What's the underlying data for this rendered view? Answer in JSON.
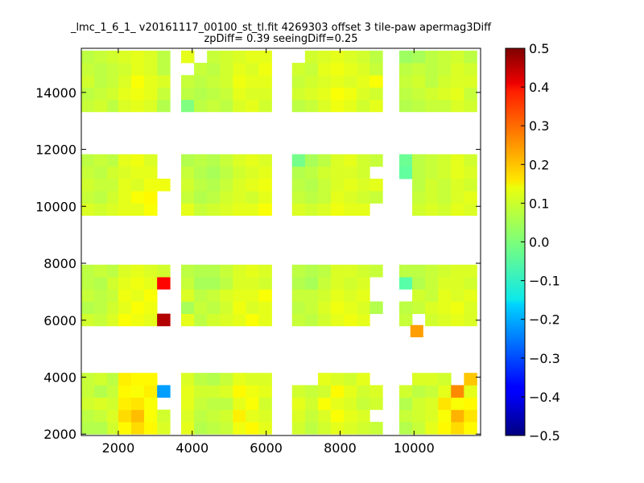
{
  "chart_data": {
    "type": "heatmap",
    "title": "_lmc_1_6_1_ v20161117_00100_st_tl.fit 4269303 offset 3 tile-paw apermag3Diff",
    "subtitle": "zpDiff= 0.39 seeingDiff=0.25",
    "xlim": [
      1000,
      11800
    ],
    "ylim": [
      1950,
      15550
    ],
    "x_ticks": [
      2000,
      4000,
      6000,
      8000,
      10000
    ],
    "y_ticks": [
      2000,
      4000,
      6000,
      8000,
      10000,
      12000,
      14000
    ],
    "x_tick_labels": [
      "2000",
      "4000",
      "6000",
      "8000",
      "10000"
    ],
    "y_tick_labels": [
      "2000",
      "4000",
      "6000",
      "8000",
      "10000",
      "12000",
      "14000"
    ],
    "colormap": "jet",
    "color_range": [
      -0.5,
      0.5
    ],
    "colorbar_ticks": [
      0.5,
      0.4,
      0.3,
      0.2,
      0.1,
      0.0,
      -0.1,
      -0.2,
      -0.3,
      -0.4,
      -0.5
    ],
    "colorbar_tick_labels": [
      "0.5",
      "0.4",
      "0.3",
      "0.2",
      "0.1",
      "0.0",
      "−0.1",
      "−0.2",
      "−0.3",
      "−0.4",
      "−0.5"
    ],
    "grid": false,
    "cell_size": [
      350,
      430
    ],
    "x_columns": [
      1000,
      1350,
      1700,
      2000,
      2350,
      2700,
      3050,
      3700,
      4050,
      4400,
      4750,
      5100,
      5450,
      5800,
      6700,
      7050,
      7400,
      7750,
      8100,
      8450,
      8800,
      9600,
      9950,
      10300,
      10650,
      11000,
      11350
    ],
    "y_bands": [
      {
        "name": "A",
        "rows": [
          2000,
          2430,
          2860,
          3290,
          3720
        ]
      },
      {
        "name": "B",
        "rows": [
          5800,
          6230,
          6660,
          7090,
          7520
        ]
      },
      {
        "name": "C",
        "rows": [
          9680,
          10110,
          10540,
          10970,
          11400
        ]
      },
      {
        "name": "D",
        "rows": [
          13320,
          13750,
          14180,
          14610,
          15040
        ]
      }
    ],
    "values": {
      "A": [
        [
          0.05,
          0.05,
          0.08,
          0.13,
          0.16,
          0.13,
          0.09,
          0.1,
          0.05,
          0.06,
          0.07,
          0.11,
          0.13,
          0.1,
          0.08,
          0.06,
          0.08,
          0.1,
          0.09,
          0.08,
          0.07,
          0.05,
          0.07,
          0.1,
          0.13,
          0.16,
          0.13
        ],
        [
          0.06,
          0.07,
          0.09,
          0.16,
          0.19,
          0.12,
          0.08,
          0.09,
          0.06,
          0.07,
          0.08,
          0.14,
          0.1,
          0.09,
          0.09,
          0.07,
          0.09,
          0.12,
          0.1,
          0.09,
          null,
          0.07,
          0.08,
          0.09,
          0.12,
          0.2,
          0.15
        ],
        [
          0.08,
          0.09,
          0.08,
          0.14,
          0.15,
          0.12,
          null,
          0.1,
          0.07,
          0.06,
          0.06,
          0.1,
          0.12,
          0.08,
          0.1,
          0.08,
          0.12,
          0.1,
          0.09,
          0.07,
          0.08,
          0.05,
          0.08,
          0.09,
          0.15,
          0.12,
          0.13
        ],
        [
          0.07,
          0.05,
          0.07,
          0.13,
          0.12,
          0.14,
          -0.22,
          0.1,
          0.08,
          0.08,
          0.09,
          0.13,
          0.11,
          0.1,
          0.08,
          0.07,
          0.08,
          0.13,
          0.1,
          0.08,
          0.09,
          0.08,
          0.06,
          0.07,
          0.1,
          0.24,
          0.1
        ],
        [
          0.07,
          0.08,
          0.06,
          0.14,
          0.13,
          0.13,
          null,
          0.09,
          0.06,
          0.05,
          0.07,
          0.1,
          0.09,
          0.09,
          null,
          null,
          0.1,
          0.09,
          0.08,
          0.1,
          null,
          null,
          0.09,
          0.09,
          0.08,
          null,
          0.18
        ]
      ],
      "B": [
        [
          0.08,
          0.07,
          0.09,
          0.12,
          0.11,
          0.1,
          0.45,
          0.1,
          0.06,
          0.08,
          0.09,
          0.1,
          0.12,
          0.1,
          0.07,
          0.06,
          0.08,
          0.1,
          0.11,
          0.1,
          null,
          0.07,
          null,
          0.08,
          0.09,
          0.1,
          0.09
        ],
        [
          0.05,
          0.06,
          0.08,
          0.1,
          0.12,
          0.11,
          null,
          0.04,
          0.07,
          0.06,
          0.08,
          0.11,
          0.09,
          0.1,
          0.06,
          0.07,
          0.09,
          0.11,
          0.1,
          0.09,
          0.05,
          0.06,
          0.07,
          0.09,
          0.1,
          0.11,
          0.09
        ],
        [
          0.07,
          0.06,
          0.07,
          0.11,
          0.1,
          0.12,
          null,
          0.09,
          0.06,
          0.07,
          0.09,
          0.1,
          0.1,
          0.12,
          0.07,
          0.07,
          0.08,
          0.1,
          0.09,
          0.1,
          null,
          null,
          0.08,
          0.07,
          0.1,
          0.09,
          0.1
        ],
        [
          0.06,
          0.05,
          0.08,
          0.1,
          0.11,
          0.1,
          0.37,
          0.07,
          0.04,
          0.04,
          0.06,
          0.09,
          0.09,
          0.08,
          0.05,
          0.04,
          0.07,
          0.09,
          0.08,
          0.09,
          null,
          -0.04,
          0.05,
          0.07,
          0.09,
          0.09,
          0.08
        ],
        [
          0.06,
          0.07,
          0.06,
          0.09,
          0.1,
          0.09,
          0.08,
          0.06,
          0.05,
          0.05,
          0.07,
          0.09,
          0.1,
          0.09,
          0.06,
          0.05,
          0.06,
          0.09,
          0.09,
          0.08,
          0.07,
          0.06,
          0.06,
          0.07,
          0.08,
          0.09,
          0.09
        ]
      ],
      "C": [
        [
          0.09,
          0.08,
          0.09,
          0.1,
          0.1,
          0.12,
          null,
          0.1,
          0.07,
          0.08,
          0.09,
          0.1,
          0.1,
          0.12,
          0.09,
          0.08,
          0.09,
          0.11,
          0.1,
          0.1,
          null,
          null,
          0.08,
          0.09,
          0.08,
          0.1,
          0.09
        ],
        [
          0.07,
          0.06,
          0.08,
          0.1,
          0.12,
          0.13,
          null,
          0.07,
          0.05,
          0.06,
          0.08,
          0.09,
          0.08,
          0.1,
          0.07,
          0.06,
          0.07,
          0.1,
          0.09,
          0.08,
          0.07,
          null,
          0.07,
          0.08,
          0.07,
          0.09,
          0.1
        ],
        [
          0.08,
          0.07,
          0.07,
          0.1,
          0.09,
          0.11,
          0.11,
          0.08,
          0.06,
          0.05,
          0.07,
          0.09,
          0.1,
          0.11,
          0.06,
          0.05,
          0.07,
          0.09,
          0.1,
          0.09,
          0.1,
          null,
          0.06,
          0.08,
          0.07,
          0.09,
          0.08
        ],
        [
          0.07,
          0.06,
          0.08,
          0.09,
          0.1,
          0.1,
          null,
          0.07,
          0.05,
          0.04,
          0.06,
          0.08,
          0.09,
          0.1,
          0.05,
          0.06,
          0.08,
          0.09,
          0.09,
          0.08,
          null,
          -0.03,
          0.06,
          0.07,
          0.08,
          0.1,
          0.09
        ],
        [
          0.06,
          0.07,
          0.06,
          0.1,
          0.11,
          0.09,
          null,
          0.05,
          0.06,
          0.05,
          0.07,
          0.09,
          0.1,
          0.09,
          -0.01,
          0.04,
          0.06,
          0.09,
          0.1,
          0.08,
          0.07,
          -0.02,
          0.06,
          0.07,
          0.08,
          0.1,
          0.08
        ]
      ],
      "D": [
        [
          0.07,
          0.08,
          0.06,
          0.09,
          0.1,
          0.09,
          0.05,
          0.0,
          0.06,
          0.07,
          0.06,
          0.09,
          0.1,
          0.08,
          0.06,
          0.07,
          0.09,
          0.11,
          0.1,
          0.08,
          0.1,
          0.05,
          0.06,
          0.07,
          0.07,
          0.09,
          0.08
        ],
        [
          0.06,
          0.07,
          0.08,
          0.1,
          0.11,
          0.1,
          0.07,
          0.06,
          0.05,
          0.06,
          0.07,
          0.1,
          0.09,
          0.09,
          0.08,
          0.09,
          0.1,
          0.12,
          0.11,
          0.09,
          0.08,
          0.06,
          0.07,
          0.08,
          0.09,
          0.1,
          0.07
        ],
        [
          0.08,
          0.06,
          0.07,
          0.09,
          0.12,
          0.1,
          0.09,
          0.07,
          0.06,
          0.07,
          0.08,
          0.11,
          0.1,
          0.1,
          0.07,
          0.08,
          0.09,
          0.1,
          0.09,
          0.1,
          0.12,
          0.07,
          0.08,
          0.06,
          0.08,
          0.09,
          0.09
        ],
        [
          0.07,
          0.06,
          0.07,
          0.08,
          0.1,
          0.09,
          0.06,
          null,
          0.07,
          0.06,
          0.08,
          0.1,
          0.09,
          0.11,
          0.08,
          0.07,
          0.1,
          0.11,
          0.1,
          0.09,
          0.07,
          0.06,
          0.07,
          0.06,
          0.07,
          0.09,
          0.08
        ],
        [
          0.06,
          0.07,
          0.08,
          0.09,
          0.1,
          0.09,
          0.06,
          0.1,
          null,
          0.07,
          0.08,
          0.09,
          0.1,
          0.1,
          null,
          0.08,
          0.09,
          0.1,
          0.09,
          0.08,
          0.06,
          0.03,
          0.04,
          0.06,
          0.07,
          0.08,
          0.06
        ]
      ]
    },
    "extra_cells": [
      {
        "x": 9900,
        "y": 5400,
        "value": 0.22
      }
    ]
  }
}
